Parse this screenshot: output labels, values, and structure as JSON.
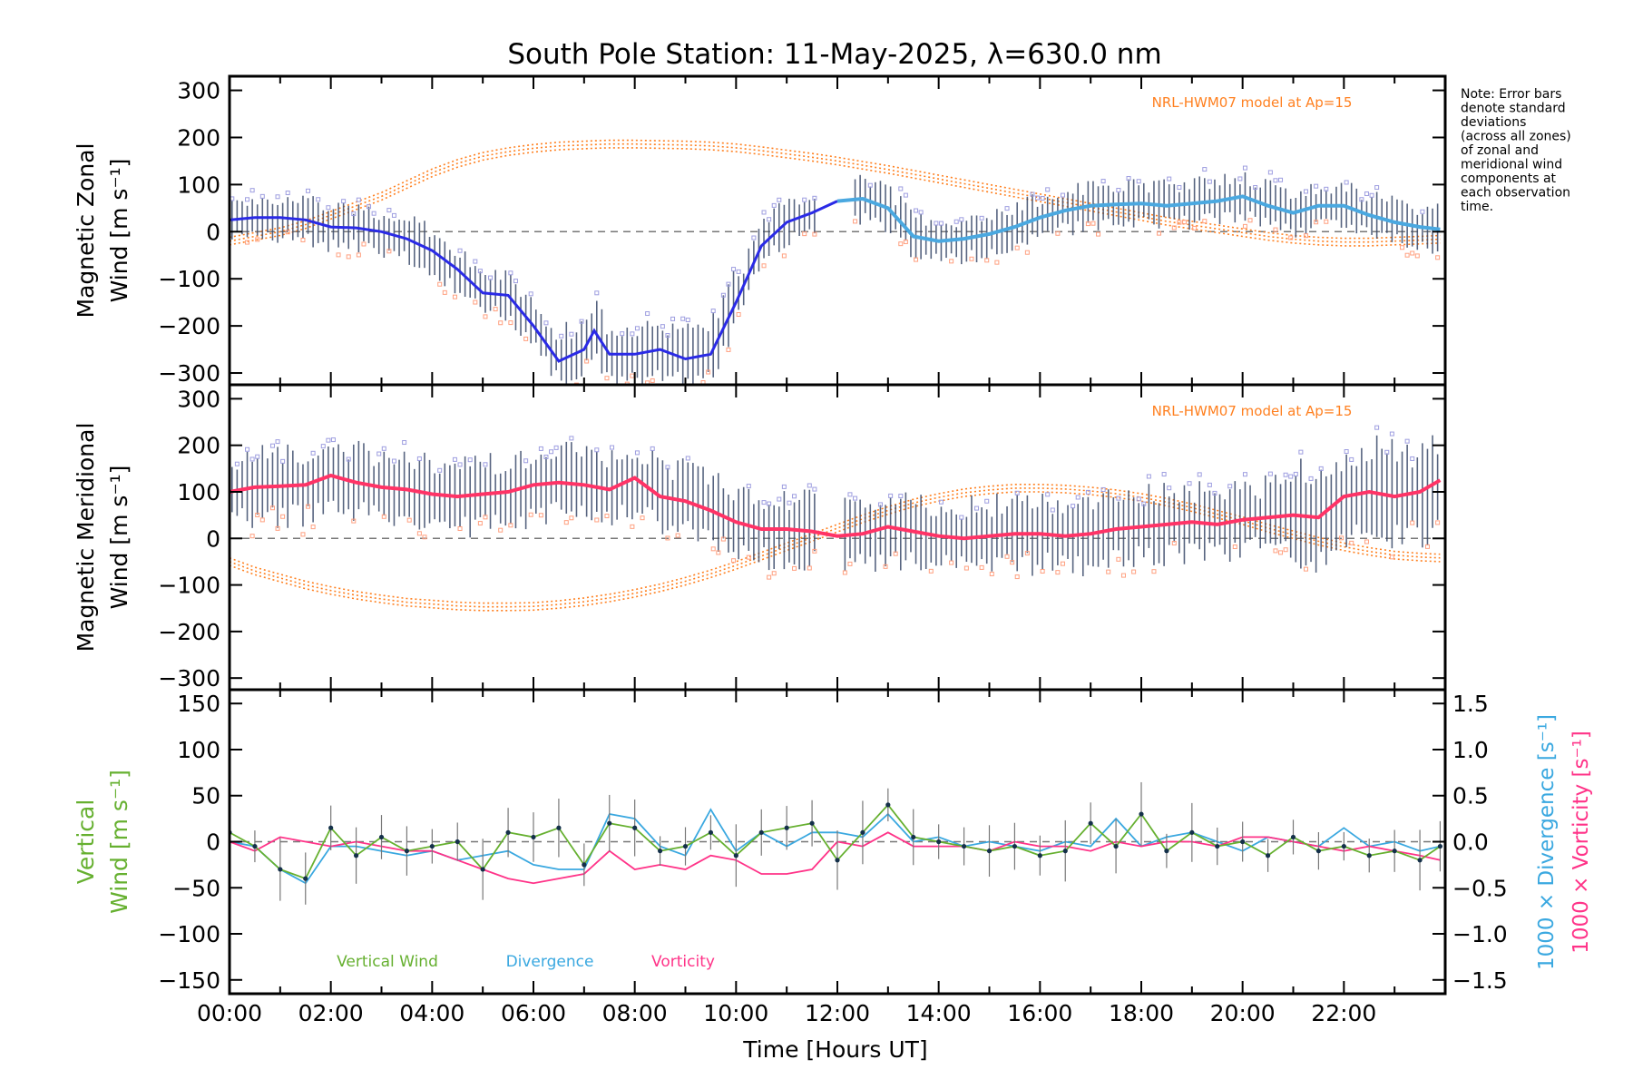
{
  "title": "South Pole Station: 11-May-2025, λ=630.0 nm",
  "note": [
    "Note: Error bars",
    "denote standard",
    "deviations",
    "(across all zones)",
    "of zonal and",
    "meridional wind",
    "components at",
    "each observation",
    "time."
  ],
  "model_label": "NRL-HWM07 model at Ap=15",
  "colors": {
    "zonal_fit": "#2a2ae6",
    "zonal_fit_late": "#4aa8e0",
    "merid_fit": "#ff3366",
    "vertical": "#66b030",
    "divergence": "#3aa8e0",
    "vorticity": "#ff3388",
    "model": "#ff8020",
    "errbar": "#3a4a6a",
    "scatter_purple": "#9e9ee0",
    "scatter_orange": "#ffa080"
  },
  "chart_data": [
    {
      "type": "line",
      "panel": "zonal",
      "ylabel_line1": "Magnetic Zonal",
      "ylabel_line2": "Wind [m s⁻¹]",
      "ylim": [
        -325,
        330
      ],
      "yticks": [
        -300,
        -200,
        -100,
        0,
        100,
        200,
        300
      ],
      "ytick_labels": [
        "−300",
        "−200",
        "−100",
        "0",
        "100",
        "200",
        "300"
      ],
      "x_hours": [
        0.0,
        0.5,
        1.0,
        1.5,
        2.0,
        2.5,
        3.0,
        3.5,
        4.0,
        4.5,
        5.0,
        5.5,
        6.0,
        6.5,
        7.0,
        7.2,
        7.5,
        8.0,
        8.5,
        9.0,
        9.5,
        10.0,
        10.5,
        11.0,
        11.5,
        12.0,
        12.5,
        13.0,
        13.5,
        14.0,
        14.5,
        15.0,
        15.5,
        16.0,
        16.5,
        17.0,
        17.5,
        18.0,
        18.5,
        19.0,
        19.5,
        20.0,
        20.5,
        21.0,
        21.5,
        22.0,
        22.5,
        23.0,
        23.5,
        23.9
      ],
      "fit": [
        25,
        30,
        30,
        25,
        10,
        8,
        0,
        -15,
        -40,
        -80,
        -130,
        -135,
        -200,
        -275,
        -250,
        -210,
        -260,
        -260,
        -250,
        -270,
        -260,
        -150,
        -30,
        20,
        40,
        65,
        70,
        50,
        -10,
        -20,
        -15,
        -5,
        10,
        30,
        45,
        55,
        58,
        60,
        55,
        60,
        65,
        75,
        55,
        40,
        55,
        55,
        35,
        20,
        10,
        5
      ],
      "model": [
        -20,
        -10,
        0,
        15,
        35,
        55,
        75,
        100,
        125,
        145,
        160,
        170,
        177,
        182,
        184,
        185,
        186,
        186,
        185,
        184,
        182,
        178,
        172,
        165,
        158,
        150,
        141,
        132,
        122,
        112,
        102,
        92,
        82,
        72,
        62,
        52,
        42,
        32,
        22,
        14,
        6,
        -2,
        -10,
        -16,
        -20,
        -22,
        -22,
        -20,
        -18,
        -16
      ]
    },
    {
      "type": "line",
      "panel": "meridional",
      "ylabel_line1": "Magnetic Meridional",
      "ylabel_line2": "Wind [m s⁻¹]",
      "ylim": [
        -325,
        330
      ],
      "yticks": [
        -300,
        -200,
        -100,
        0,
        100,
        200,
        300
      ],
      "ytick_labels": [
        "−300",
        "−200",
        "−100",
        "0",
        "100",
        "200",
        "300"
      ],
      "x_hours": [
        0.0,
        0.5,
        1.0,
        1.5,
        2.0,
        2.5,
        3.0,
        3.5,
        4.0,
        4.5,
        5.0,
        5.5,
        6.0,
        6.5,
        7.0,
        7.5,
        8.0,
        8.5,
        9.0,
        9.5,
        10.0,
        10.5,
        11.0,
        11.5,
        12.0,
        12.5,
        13.0,
        13.5,
        14.0,
        14.5,
        15.0,
        15.5,
        16.0,
        16.5,
        17.0,
        17.5,
        18.0,
        18.5,
        19.0,
        19.5,
        20.0,
        20.5,
        21.0,
        21.5,
        22.0,
        22.5,
        23.0,
        23.5,
        23.9
      ],
      "fit": [
        100,
        110,
        112,
        115,
        135,
        120,
        110,
        105,
        95,
        90,
        95,
        100,
        115,
        120,
        115,
        105,
        130,
        90,
        80,
        60,
        35,
        20,
        20,
        15,
        5,
        10,
        25,
        15,
        5,
        0,
        5,
        10,
        10,
        5,
        10,
        20,
        25,
        30,
        35,
        30,
        40,
        45,
        50,
        45,
        90,
        100,
        90,
        100,
        125
      ],
      "model": [
        -50,
        -70,
        -85,
        -100,
        -112,
        -122,
        -130,
        -137,
        -141,
        -145,
        -147,
        -147,
        -146,
        -142,
        -136,
        -128,
        -118,
        -106,
        -92,
        -76,
        -58,
        -38,
        -18,
        2,
        22,
        42,
        60,
        76,
        88,
        98,
        104,
        108,
        108,
        106,
        102,
        96,
        88,
        78,
        66,
        52,
        38,
        22,
        8,
        -6,
        -18,
        -28,
        -36,
        -40,
        -42
      ]
    },
    {
      "type": "line",
      "panel": "vertical",
      "ylabel_line1": "Vertical",
      "ylabel_line2": "Wind [m s⁻¹]",
      "y2label_divergence": "1000 × Divergence [s⁻¹]",
      "y2label_vorticity": "1000 × Vorticity [s⁻¹]",
      "ylim": [
        -165,
        165
      ],
      "yticks": [
        -150,
        -100,
        -50,
        0,
        50,
        100,
        150
      ],
      "ytick_labels": [
        "−150",
        "−100",
        "−50",
        "0",
        "50",
        "100",
        "150"
      ],
      "y2lim": [
        -1.65,
        1.65
      ],
      "y2ticks": [
        -1.5,
        -1.0,
        -0.5,
        0.0,
        0.5,
        1.0,
        1.5
      ],
      "y2tick_labels": [
        "−1.5",
        "−1.0",
        "−0.5",
        "0.0",
        "0.5",
        "1.0",
        "1.5"
      ],
      "legend": [
        "Vertical Wind",
        "Divergence",
        "Vorticity"
      ],
      "x_hours": [
        0.0,
        0.5,
        1.0,
        1.5,
        2.0,
        2.5,
        3.0,
        3.5,
        4.0,
        4.5,
        5.0,
        5.5,
        6.0,
        6.5,
        7.0,
        7.5,
        8.0,
        8.5,
        9.0,
        9.5,
        10.0,
        10.5,
        11.0,
        11.5,
        12.0,
        12.5,
        13.0,
        13.5,
        14.0,
        14.5,
        15.0,
        15.5,
        16.0,
        16.5,
        17.0,
        17.5,
        18.0,
        18.5,
        19.0,
        19.5,
        20.0,
        20.5,
        21.0,
        21.5,
        22.0,
        22.5,
        23.0,
        23.5,
        23.9
      ],
      "vertical": [
        10,
        -5,
        -30,
        -40,
        15,
        -15,
        5,
        -10,
        -5,
        0,
        -30,
        10,
        5,
        15,
        -25,
        20,
        15,
        -10,
        -5,
        10,
        -15,
        10,
        15,
        20,
        -20,
        10,
        40,
        5,
        0,
        -5,
        -10,
        -5,
        -15,
        -10,
        20,
        -5,
        30,
        -10,
        10,
        -5,
        0,
        -15,
        5,
        -10,
        -5,
        -15,
        -10,
        -20,
        -5
      ],
      "divergence": [
        0.0,
        -0.05,
        -0.3,
        -0.45,
        -0.05,
        -0.05,
        -0.1,
        -0.15,
        -0.1,
        -0.2,
        -0.15,
        -0.1,
        -0.25,
        -0.3,
        -0.3,
        0.3,
        0.25,
        -0.05,
        -0.15,
        0.35,
        -0.1,
        0.1,
        -0.05,
        0.1,
        0.1,
        0.05,
        0.3,
        0.0,
        0.05,
        -0.05,
        0.0,
        -0.05,
        -0.1,
        0.0,
        -0.05,
        0.25,
        -0.05,
        0.05,
        0.1,
        0.0,
        -0.1,
        0.05,
        0.0,
        -0.05,
        0.15,
        -0.05,
        0.0,
        -0.1,
        -0.05
      ],
      "vorticity": [
        0.0,
        -0.1,
        0.05,
        0.0,
        -0.05,
        0.0,
        -0.05,
        -0.1,
        -0.1,
        -0.2,
        -0.3,
        -0.4,
        -0.45,
        -0.4,
        -0.35,
        -0.1,
        -0.3,
        -0.25,
        -0.3,
        -0.15,
        -0.2,
        -0.35,
        -0.35,
        -0.3,
        0.0,
        -0.05,
        0.1,
        -0.05,
        -0.05,
        -0.05,
        -0.1,
        0.0,
        -0.05,
        -0.05,
        -0.1,
        0.0,
        -0.05,
        0.0,
        0.0,
        -0.05,
        0.05,
        0.05,
        0.0,
        -0.05,
        -0.1,
        -0.05,
        -0.1,
        -0.15,
        -0.2
      ]
    }
  ],
  "xaxis": {
    "label": "Time [Hours UT]",
    "xlim": [
      0,
      24
    ],
    "ticks": [
      0,
      2,
      4,
      6,
      8,
      10,
      12,
      14,
      16,
      18,
      20,
      22
    ],
    "tick_labels": [
      "00:00",
      "02:00",
      "04:00",
      "06:00",
      "08:00",
      "10:00",
      "12:00",
      "14:00",
      "16:00",
      "18:00",
      "20:00",
      "22:00"
    ]
  }
}
